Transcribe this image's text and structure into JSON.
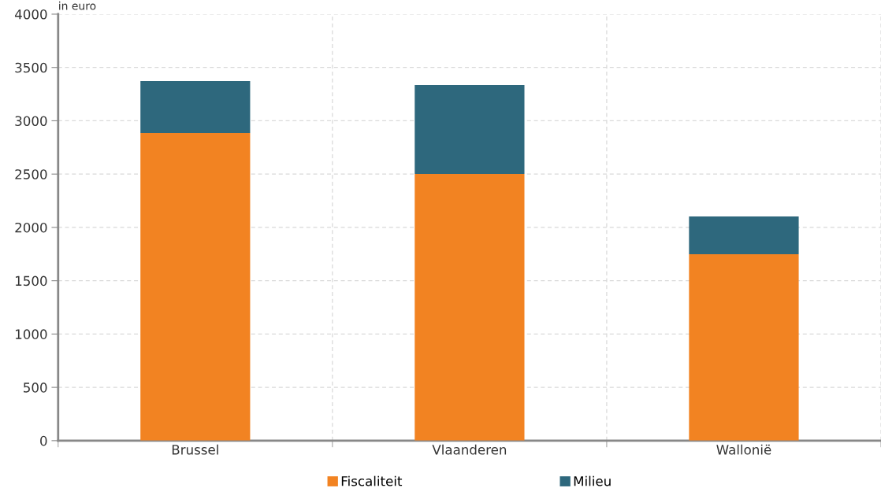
{
  "chart_data": {
    "type": "bar",
    "stacked": true,
    "ylabel": "in euro",
    "categories": [
      "Brussel",
      "Vlaanderen",
      "Wallonië"
    ],
    "series": [
      {
        "name": "Fiscaliteit",
        "color": "#f28322",
        "values": [
          2886,
          2502,
          1749
        ]
      },
      {
        "name": "Milieu",
        "color": "#2e687d",
        "values": [
          487,
          834,
          354
        ]
      }
    ],
    "ylim": [
      0,
      4000
    ],
    "yticks": [
      0,
      500,
      1000,
      1500,
      2000,
      2500,
      3000,
      3500,
      4000
    ],
    "grid": true,
    "legend": "bottom"
  }
}
